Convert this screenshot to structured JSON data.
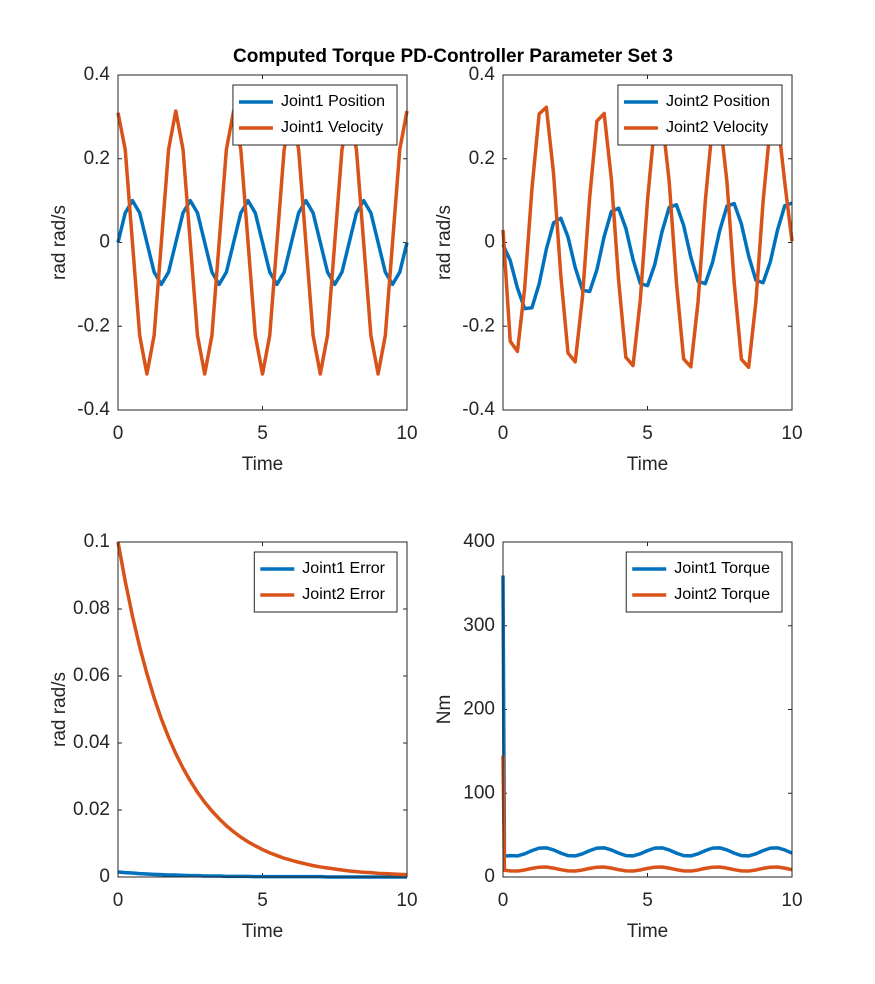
{
  "title": "Computed Torque PD-Controller Parameter Set 3",
  "chart_data": [
    {
      "type": "line",
      "xlabel": "Time",
      "ylabel": "rad rad/s",
      "xlim": [
        0,
        10
      ],
      "xticks": [
        0,
        5,
        10
      ],
      "ylim": [
        -0.4,
        0.4
      ],
      "yticks": [
        -0.4,
        -0.2,
        0,
        0.2,
        0.4
      ],
      "legend": "northeast",
      "x": [
        0,
        0.25,
        0.5,
        0.75,
        1,
        1.25,
        1.5,
        1.75,
        2,
        2.25,
        2.5,
        2.75,
        3,
        3.25,
        3.5,
        3.75,
        4,
        4.25,
        4.5,
        4.75,
        5,
        5.25,
        5.5,
        5.75,
        6,
        6.25,
        6.5,
        6.75,
        7,
        7.25,
        7.5,
        7.75,
        8,
        8.25,
        8.5,
        8.75,
        9,
        9.25,
        9.5,
        9.75,
        10
      ],
      "series": [
        {
          "name": "Joint1 Position",
          "color": "#0072BD",
          "values": [
            0,
            0.0707,
            0.1,
            0.0707,
            0,
            -0.0707,
            -0.1,
            -0.0707,
            0,
            0.0707,
            0.1,
            0.0707,
            0,
            -0.0707,
            -0.1,
            -0.0707,
            0,
            0.0707,
            0.1,
            0.0707,
            0,
            -0.0707,
            -0.1,
            -0.0707,
            0,
            0.0707,
            0.1,
            0.0707,
            0,
            -0.0707,
            -0.1,
            -0.0707,
            0,
            0.0707,
            0.1,
            0.0707,
            0,
            -0.0707,
            -0.1,
            -0.0707,
            0
          ]
        },
        {
          "name": "Joint1 Velocity",
          "color": "#D95319",
          "values": [
            0.31,
            0.222,
            0,
            -0.222,
            -0.314,
            -0.222,
            0,
            0.222,
            0.314,
            0.222,
            0,
            -0.222,
            -0.314,
            -0.222,
            0,
            0.222,
            0.314,
            0.222,
            0,
            -0.222,
            -0.314,
            -0.222,
            0,
            0.222,
            0.314,
            0.222,
            0,
            -0.222,
            -0.314,
            -0.222,
            0,
            0.222,
            0.314,
            0.222,
            0,
            -0.222,
            -0.314,
            -0.222,
            0,
            0.222,
            0.314
          ]
        }
      ]
    },
    {
      "type": "line",
      "xlabel": "Time",
      "ylabel": "rad rad/s",
      "xlim": [
        0,
        10
      ],
      "xticks": [
        0,
        5,
        10
      ],
      "ylim": [
        -0.4,
        0.4
      ],
      "yticks": [
        -0.4,
        -0.2,
        0,
        0.2,
        0.4
      ],
      "legend": "northeast",
      "x": [
        0,
        0.25,
        0.5,
        0.75,
        1,
        1.25,
        1.5,
        1.75,
        2,
        2.25,
        2.5,
        2.75,
        3,
        3.25,
        3.5,
        3.75,
        4,
        4.25,
        4.5,
        4.75,
        5,
        5.25,
        5.5,
        5.75,
        6,
        6.25,
        6.5,
        6.75,
        7,
        7.25,
        7.5,
        7.75,
        8,
        8.25,
        8.5,
        8.75,
        9,
        9.25,
        9.5,
        9.75,
        10
      ],
      "series": [
        {
          "name": "Joint2 Position",
          "color": "#0072BD",
          "values": [
            -0.005,
            -0.043,
            -0.109,
            -0.158,
            -0.156,
            -0.099,
            -0.016,
            0.047,
            0.058,
            0.013,
            -0.06,
            -0.114,
            -0.117,
            -0.065,
            0.014,
            0.074,
            0.082,
            0.034,
            -0.041,
            -0.098,
            -0.103,
            -0.053,
            0.025,
            0.084,
            0.09,
            0.041,
            -0.035,
            -0.093,
            -0.098,
            -0.048,
            0.029,
            0.087,
            0.093,
            0.044,
            -0.032,
            -0.09,
            -0.096,
            -0.046,
            0.03,
            0.088,
            0.094
          ]
        },
        {
          "name": "Joint2 Velocity",
          "color": "#D95319",
          "values": [
            0.03,
            -0.236,
            -0.26,
            -0.109,
            0.127,
            0.307,
            0.323,
            0.164,
            -0.079,
            -0.264,
            -0.285,
            -0.13,
            0.108,
            0.29,
            0.308,
            0.151,
            -0.09,
            -0.274,
            -0.294,
            -0.138,
            0.101,
            0.284,
            0.302,
            0.146,
            -0.095,
            -0.278,
            -0.297,
            -0.141,
            0.099,
            0.281,
            0.3,
            0.144,
            -0.096,
            -0.279,
            -0.298,
            -0.142,
            0.098,
            0.28,
            0.299,
            0.143,
            0.003
          ]
        }
      ]
    },
    {
      "type": "line",
      "xlabel": "Time",
      "ylabel": "rad rad/s",
      "xlim": [
        0,
        10
      ],
      "xticks": [
        0,
        5,
        10
      ],
      "ylim": [
        0,
        0.1
      ],
      "yticks": [
        0,
        0.02,
        0.04,
        0.06,
        0.08,
        0.1
      ],
      "legend": "northeast",
      "x": [
        0,
        0.25,
        0.5,
        0.75,
        1,
        1.25,
        1.5,
        1.75,
        2,
        2.25,
        2.5,
        2.75,
        3,
        3.25,
        3.5,
        3.75,
        4,
        4.25,
        4.5,
        4.75,
        5,
        5.25,
        5.5,
        5.75,
        6,
        6.25,
        6.5,
        6.75,
        7,
        7.25,
        7.5,
        7.75,
        8,
        8.25,
        8.5,
        8.75,
        9,
        9.25,
        9.5,
        9.75,
        10
      ],
      "series": [
        {
          "name": "Joint1 Error",
          "color": "#0072BD",
          "values": [
            0.0015,
            0.0013,
            0.0012,
            0.001,
            0.0009,
            0.0008,
            0.0007,
            0.0006,
            0.0006,
            0.0005,
            0.0004,
            0.0004,
            0.0003,
            0.0003,
            0.0003,
            0.0002,
            0.0002,
            0.0002,
            0.0002,
            0.0001,
            0.0001,
            0.0001,
            0.0001,
            0.0001,
            0.0001,
            0.0001,
            0.0001,
            0.0001,
            0.0001,
            0,
            0,
            0,
            0,
            0,
            0,
            0,
            0,
            0,
            0,
            0,
            0
          ]
        },
        {
          "name": "Joint2 Error",
          "color": "#D95319",
          "values": [
            0.1,
            0.0883,
            0.0779,
            0.0687,
            0.0607,
            0.0535,
            0.0472,
            0.0417,
            0.0368,
            0.0325,
            0.0287,
            0.0253,
            0.0223,
            0.0197,
            0.0174,
            0.0153,
            0.0135,
            0.0119,
            0.0105,
            0.0093,
            0.0082,
            0.0072,
            0.0064,
            0.0056,
            0.005,
            0.0044,
            0.0039,
            0.0034,
            0.003,
            0.0027,
            0.0024,
            0.0021,
            0.0018,
            0.0016,
            0.0014,
            0.0013,
            0.0011,
            0.001,
            0.0009,
            0.0008,
            0.0007
          ]
        }
      ]
    },
    {
      "type": "line",
      "xlabel": "Time",
      "ylabel": "Nm",
      "xlim": [
        0,
        10
      ],
      "xticks": [
        0,
        5,
        10
      ],
      "ylim": [
        0,
        400
      ],
      "yticks": [
        0,
        100,
        200,
        300,
        400
      ],
      "legend": "northeast",
      "x": [
        0,
        0.05,
        0.25,
        0.5,
        0.75,
        1,
        1.25,
        1.5,
        1.75,
        2,
        2.25,
        2.5,
        2.75,
        3,
        3.25,
        3.5,
        3.75,
        4,
        4.25,
        4.5,
        4.75,
        5,
        5.25,
        5.5,
        5.75,
        6,
        6.25,
        6.5,
        6.75,
        7,
        7.25,
        7.5,
        7.75,
        8,
        8.25,
        8.5,
        8.75,
        9,
        9.25,
        9.5,
        9.75,
        10
      ],
      "series": [
        {
          "name": "Joint1 Torque",
          "color": "#0072BD",
          "values": [
            360,
            25,
            25.5,
            25.2,
            27.7,
            31.5,
            34.5,
            34.8,
            32.3,
            28.5,
            25.5,
            25.2,
            27.7,
            31.5,
            34.5,
            34.8,
            32.3,
            28.5,
            25.5,
            25.2,
            27.7,
            31.5,
            34.5,
            34.8,
            32.3,
            28.5,
            25.5,
            25.2,
            27.7,
            31.5,
            34.5,
            34.8,
            32.3,
            28.5,
            25.5,
            25.2,
            27.7,
            31.5,
            34.5,
            34.8,
            32.3,
            28.5
          ]
        },
        {
          "name": "Joint2 Torque",
          "color": "#D95319",
          "values": [
            145,
            8,
            7.3,
            7.1,
            8.4,
            10.3,
            11.7,
            11.9,
            10.6,
            8.7,
            7.3,
            7.1,
            8.4,
            10.3,
            11.7,
            11.9,
            10.6,
            8.7,
            7.3,
            7.1,
            8.4,
            10.3,
            11.7,
            11.9,
            10.6,
            8.7,
            7.3,
            7.1,
            8.4,
            10.3,
            11.7,
            11.9,
            10.6,
            8.7,
            7.3,
            7.1,
            8.4,
            10.3,
            11.7,
            11.9,
            10.6,
            8.7
          ]
        }
      ]
    }
  ]
}
